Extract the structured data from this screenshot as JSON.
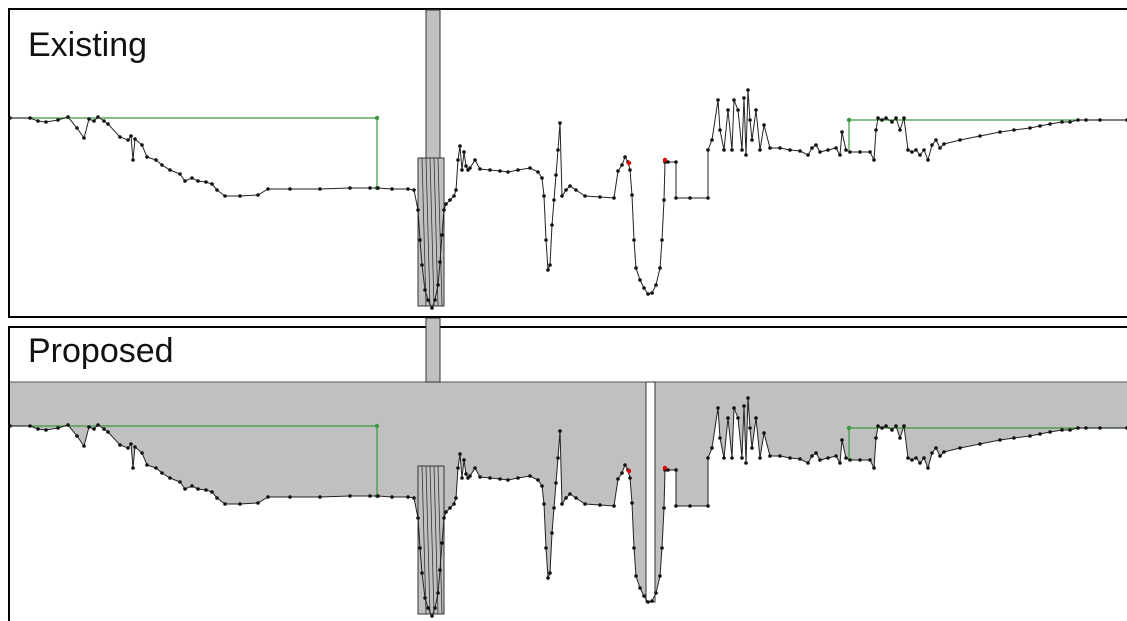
{
  "panels": [
    {
      "id": "existing",
      "title": "Existing",
      "show_fill": false
    },
    {
      "id": "proposed",
      "title": "Proposed",
      "show_fill": true
    }
  ],
  "colors": {
    "profile_line": "#222222",
    "node": "#111111",
    "node_highlight": "#e00000",
    "hgl_line": "#3a9a3a",
    "fill": "#c0c0c0",
    "frame": "#000000"
  }
}
